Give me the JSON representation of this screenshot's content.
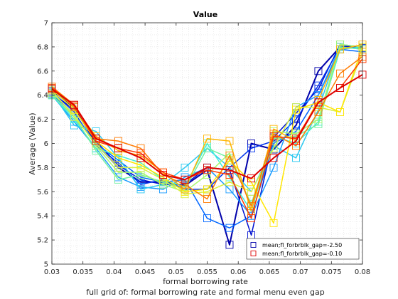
{
  "chart_data": {
    "type": "line",
    "title": "Value",
    "xlabel": "formal borrowing rate",
    "ylabel": "Average (Value)",
    "caption": "full grid of: formal borrowing rate and formal menu even gap",
    "xlim": [
      0.03,
      0.08
    ],
    "ylim": [
      5,
      7
    ],
    "xticks": [
      "0.03",
      "0.035",
      "0.04",
      "0.045",
      "0.05",
      "0.055",
      "0.06",
      "0.065",
      "0.07",
      "0.075",
      "0.08"
    ],
    "yticks": [
      "5",
      "5.2",
      "5.4",
      "5.6",
      "5.8",
      "6",
      "6.2",
      "6.4",
      "6.6",
      "6.8",
      "7"
    ],
    "grid": "minor-dotted",
    "legend_position": "bottom-right",
    "x": [
      0.03,
      0.0336,
      0.0371,
      0.0407,
      0.0443,
      0.0479,
      0.0514,
      0.055,
      0.0586,
      0.0621,
      0.0657,
      0.0693,
      0.0729,
      0.0764,
      0.08
    ],
    "series": [
      {
        "name": "mean;fl_forbrblk_gap=-2.50",
        "color": "#0000aa",
        "legend": true,
        "values": [
          6.44,
          6.3,
          6.0,
          5.8,
          5.68,
          5.68,
          5.65,
          5.78,
          5.16,
          6.0,
          5.95,
          6.15,
          6.6,
          6.8,
          6.8
        ]
      },
      {
        "name": "",
        "color": "#0010d0",
        "legend": false,
        "values": [
          6.42,
          6.28,
          6.02,
          5.82,
          5.7,
          5.66,
          5.66,
          5.8,
          5.78,
          5.24,
          6.05,
          6.25,
          6.45,
          6.82,
          6.78
        ]
      },
      {
        "name": "",
        "color": "#0033ee",
        "legend": false,
        "values": [
          6.43,
          6.26,
          5.98,
          5.84,
          5.66,
          5.7,
          5.62,
          5.62,
          5.8,
          5.96,
          6.02,
          6.2,
          6.48,
          6.8,
          6.79
        ]
      },
      {
        "name": "",
        "color": "#0066ff",
        "legend": false,
        "values": [
          6.41,
          6.24,
          6.0,
          5.86,
          5.72,
          5.68,
          5.7,
          5.38,
          5.3,
          5.4,
          6.0,
          6.1,
          6.4,
          6.78,
          6.76
        ]
      },
      {
        "name": "",
        "color": "#1a9cff",
        "legend": false,
        "values": [
          6.4,
          6.18,
          5.96,
          5.72,
          5.64,
          5.62,
          5.72,
          5.8,
          5.62,
          5.4,
          5.8,
          6.3,
          6.4,
          6.8,
          6.78
        ]
      },
      {
        "name": "",
        "color": "#29c8f0",
        "legend": false,
        "values": [
          6.42,
          6.15,
          6.1,
          5.88,
          5.62,
          5.66,
          5.8,
          5.96,
          5.8,
          5.6,
          5.98,
          5.88,
          6.28,
          6.82,
          6.8
        ]
      },
      {
        "name": "",
        "color": "#3ff0d8",
        "legend": false,
        "values": [
          6.4,
          6.2,
          5.96,
          5.9,
          5.84,
          5.7,
          5.64,
          6.0,
          5.72,
          5.44,
          6.06,
          6.0,
          6.18,
          6.78,
          6.8
        ]
      },
      {
        "name": "",
        "color": "#70f0a0",
        "legend": false,
        "values": [
          6.4,
          6.22,
          5.94,
          5.7,
          5.74,
          5.68,
          5.62,
          5.96,
          5.88,
          5.5,
          6.04,
          6.06,
          6.16,
          6.8,
          6.78
        ]
      },
      {
        "name": "",
        "color": "#a8f870",
        "legend": false,
        "values": [
          6.42,
          6.24,
          5.98,
          5.76,
          5.76,
          5.66,
          5.6,
          5.74,
          5.92,
          5.48,
          6.1,
          6.08,
          6.2,
          6.82,
          6.8
        ]
      },
      {
        "name": "",
        "color": "#d8f040",
        "legend": false,
        "values": [
          6.44,
          6.22,
          6.0,
          5.8,
          5.8,
          5.7,
          5.58,
          5.6,
          5.68,
          5.6,
          5.96,
          6.3,
          6.3,
          6.26,
          6.76
        ]
      },
      {
        "name": "",
        "color": "#ffe600",
        "legend": false,
        "values": [
          6.45,
          6.28,
          6.02,
          5.88,
          5.82,
          5.72,
          5.6,
          5.62,
          5.86,
          5.68,
          5.34,
          6.28,
          6.34,
          6.26,
          6.8
        ]
      },
      {
        "name": "",
        "color": "#ffb400",
        "legend": false,
        "values": [
          6.46,
          6.3,
          6.06,
          5.94,
          5.9,
          5.76,
          5.62,
          6.04,
          6.02,
          5.44,
          6.12,
          6.02,
          6.36,
          6.78,
          6.82
        ]
      },
      {
        "name": "",
        "color": "#ff7a00",
        "legend": false,
        "values": [
          6.47,
          6.32,
          6.04,
          6.02,
          5.96,
          5.74,
          5.66,
          5.54,
          5.9,
          5.48,
          6.08,
          5.98,
          6.26,
          6.58,
          6.72
        ]
      },
      {
        "name": "",
        "color": "#ff3a00",
        "legend": false,
        "values": [
          6.46,
          6.31,
          6.02,
          5.96,
          5.92,
          5.76,
          5.7,
          5.78,
          5.74,
          5.38,
          6.06,
          6.04,
          6.34,
          6.46,
          6.7
        ]
      },
      {
        "name": "mean;fl_forbrblk_gap=-0.10",
        "color": "#dd0000",
        "legend": true,
        "values": [
          6.45,
          6.32,
          6.04,
          5.96,
          5.88,
          5.74,
          5.7,
          5.8,
          5.78,
          5.71,
          5.88,
          6.02,
          6.34,
          6.46,
          6.57
        ]
      }
    ]
  }
}
